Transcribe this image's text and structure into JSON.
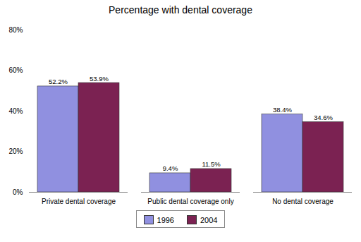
{
  "chart_data": {
    "type": "bar",
    "title": "Percentage with dental coverage",
    "categories": [
      "Private dental coverage",
      "Public dental coverage only",
      "No dental coverage"
    ],
    "series": [
      {
        "name": "1996",
        "color": "#9090e0",
        "values": [
          52.2,
          9.4,
          38.4
        ],
        "value_labels": [
          "52.2%",
          "9.4%",
          "38.4%"
        ]
      },
      {
        "name": "2004",
        "color": "#7b2252",
        "values": [
          53.9,
          11.5,
          34.6
        ],
        "value_labels": [
          "53.9%",
          "11.5%",
          "34.6%"
        ]
      }
    ],
    "ylim": [
      0,
      80
    ],
    "yticks": [
      {
        "value": 0,
        "label": "0%"
      },
      {
        "value": 20,
        "label": "20%"
      },
      {
        "value": 40,
        "label": "40%"
      },
      {
        "value": 60,
        "label": "60%"
      },
      {
        "value": 80,
        "label": "80%"
      }
    ],
    "data_labels": true,
    "grid": false,
    "legend": "bottom"
  }
}
